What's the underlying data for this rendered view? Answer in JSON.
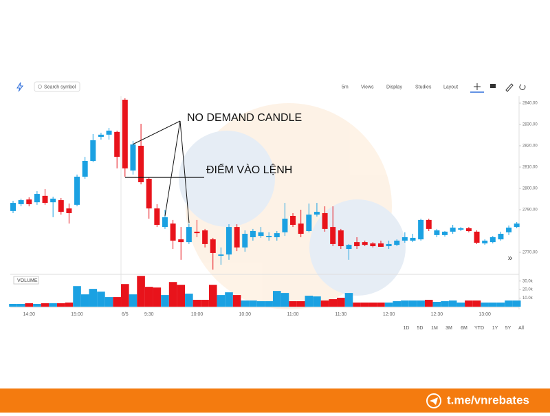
{
  "toolbar": {
    "search_placeholder": "Search symbol",
    "menus": [
      "5m",
      "Views",
      "Display",
      "Studies",
      "Layout"
    ]
  },
  "chart_data": {
    "type": "candlestick",
    "categories": [
      null,
      null,
      "14:30",
      null,
      null,
      null,
      null,
      null,
      "15:00",
      null,
      null,
      null,
      null,
      null,
      "6/5",
      null,
      null,
      "9:30",
      null,
      null,
      null,
      null,
      null,
      "10:00",
      null,
      null,
      null,
      null,
      null,
      "10:30",
      null,
      null,
      null,
      null,
      null,
      "11:00",
      null,
      null,
      null,
      null,
      null,
      "11:30",
      null,
      null,
      null,
      null,
      null,
      "12:00",
      null,
      null,
      null,
      null,
      null,
      "12:30",
      null,
      null,
      null,
      null,
      null,
      "13:00",
      null,
      null,
      null,
      null
    ],
    "open": [
      2789.4,
      2792.6,
      2794.8,
      2793.5,
      2796.5,
      2793.5,
      2794.5,
      2790.6,
      2792.3,
      2805.5,
      2812.9,
      2824.2,
      2825.2,
      2826.5,
      2841.6,
      2808.4,
      2820.0,
      2804.5,
      2790.6,
      2781.9,
      2783.5,
      2776.1,
      2774.8,
      2779.7,
      2780.3,
      2776.1,
      2768.4,
      2769.0,
      2781.9,
      2772.3,
      2777.1,
      2777.7,
      2777.1,
      2777.1,
      2779.4,
      2787.1,
      2783.5,
      2780.0,
      2787.7,
      2788.4,
      2781.9,
      2780.3,
      2771.6,
      2774.8,
      2774.8,
      2774.2,
      2774.2,
      2772.9,
      2773.5,
      2775.5,
      2775.5,
      2776.1,
      2785.2,
      2778.1,
      2778.1,
      2779.7,
      2780.6,
      2781.3,
      2779.7,
      2774.2,
      2774.8,
      2776.1,
      2779.4,
      2781.9
    ],
    "high": [
      2794.2,
      2795.2,
      2795.8,
      2798.7,
      2799.7,
      2796.1,
      2795.5,
      2792.9,
      2806.5,
      2814.8,
      2825.5,
      2826.1,
      2828.4,
      2827.1,
      2842.3,
      2822.3,
      2830.3,
      2805.2,
      2792.6,
      2790.0,
      2785.2,
      2781.9,
      2783.5,
      2785.2,
      2781.0,
      2776.8,
      2772.3,
      2783.2,
      2783.2,
      2780.3,
      2781.0,
      2781.9,
      2779.4,
      2780.0,
      2793.2,
      2788.4,
      2790.0,
      2792.9,
      2793.2,
      2791.6,
      2791.6,
      2781.0,
      2773.9,
      2777.1,
      2775.5,
      2774.8,
      2775.5,
      2775.5,
      2776.1,
      2779.4,
      2778.7,
      2785.8,
      2785.8,
      2781.0,
      2780.0,
      2782.9,
      2781.9,
      2781.9,
      2780.3,
      2776.1,
      2777.7,
      2779.7,
      2782.6,
      2784.2
    ],
    "low": [
      2788.4,
      2791.6,
      2791.6,
      2792.3,
      2792.3,
      2786.5,
      2787.7,
      2783.5,
      2791.6,
      2804.5,
      2812.3,
      2822.9,
      2822.9,
      2809.4,
      2805.5,
      2806.5,
      2801.9,
      2785.8,
      2781.9,
      2781.0,
      2771.6,
      2766.5,
      2773.9,
      2777.1,
      2772.3,
      2761.9,
      2764.2,
      2766.5,
      2770.6,
      2770.3,
      2775.5,
      2776.8,
      2775.5,
      2775.5,
      2777.7,
      2781.9,
      2777.1,
      2779.4,
      2786.8,
      2779.7,
      2772.9,
      2771.6,
      2766.5,
      2771.6,
      2772.9,
      2772.3,
      2772.6,
      2771.6,
      2772.9,
      2774.5,
      2774.8,
      2775.5,
      2780.0,
      2777.1,
      2777.4,
      2778.7,
      2780.0,
      2779.4,
      2773.9,
      2773.5,
      2774.2,
      2775.5,
      2778.1,
      2781.3
    ],
    "close": [
      2793.2,
      2794.5,
      2792.6,
      2797.4,
      2793.2,
      2795.2,
      2789.0,
      2788.4,
      2805.5,
      2812.9,
      2822.6,
      2825.2,
      2827.1,
      2814.8,
      2809.4,
      2820.6,
      2802.9,
      2790.6,
      2782.9,
      2786.5,
      2775.5,
      2774.8,
      2781.9,
      2779.0,
      2773.9,
      2769.7,
      2769.0,
      2781.9,
      2772.3,
      2778.7,
      2780.0,
      2779.4,
      2777.7,
      2779.0,
      2785.8,
      2782.9,
      2778.7,
      2787.7,
      2789.0,
      2781.0,
      2773.9,
      2772.9,
      2773.5,
      2772.9,
      2773.5,
      2772.9,
      2772.6,
      2773.9,
      2775.5,
      2777.1,
      2776.8,
      2785.2,
      2781.0,
      2780.3,
      2779.7,
      2781.6,
      2781.3,
      2780.0,
      2774.5,
      2775.5,
      2777.1,
      2778.7,
      2781.6,
      2783.5
    ],
    "volume": [
      3200,
      3200,
      4000,
      3200,
      4000,
      4000,
      4000,
      4800,
      24000,
      14400,
      20800,
      17600,
      11200,
      11200,
      26400,
      14400,
      36000,
      23200,
      22400,
      13600,
      28800,
      25600,
      15200,
      8000,
      8000,
      25600,
      13600,
      16800,
      13600,
      7200,
      7200,
      6400,
      6400,
      18400,
      16000,
      6400,
      6400,
      12800,
      12000,
      7200,
      8800,
      10400,
      16000,
      4800,
      4800,
      4800,
      4800,
      4800,
      6400,
      7200,
      7200,
      7200,
      8000,
      5600,
      6400,
      7200,
      4800,
      7200,
      7200,
      4800,
      4800,
      4800,
      7200,
      7200
    ],
    "up_color": "#1ba1e2",
    "down_color": "#e8131b",
    "ylim": [
      2760,
      2843
    ],
    "yticks": [
      {
        "value": 2770,
        "label": "2770.00"
      },
      {
        "value": 2790,
        "label": "2790.00"
      },
      {
        "value": 2800,
        "label": "2800.00"
      },
      {
        "value": 2810,
        "label": "2810.00"
      },
      {
        "value": 2820,
        "label": "2820.00"
      },
      {
        "value": 2830,
        "label": "2830.00"
      },
      {
        "value": 2840,
        "label": "2840.00"
      }
    ],
    "volume_label": "VOLUME",
    "volume_ylim": [
      0,
      37000
    ],
    "volume_yticks": [
      {
        "value": 10000,
        "label": "10.0k"
      },
      {
        "value": 20000,
        "label": "20.0k"
      },
      {
        "value": 30000,
        "label": "30.0k"
      }
    ],
    "annotations": [
      "NO DEMAND CANDLE",
      "ĐIỂM VÀO LỆNH"
    ]
  },
  "ranges": [
    "1D",
    "5D",
    "1M",
    "3M",
    "6M",
    "YTD",
    "1Y",
    "5Y",
    "All"
  ],
  "footer": {
    "link": "t.me/vnrebates"
  }
}
